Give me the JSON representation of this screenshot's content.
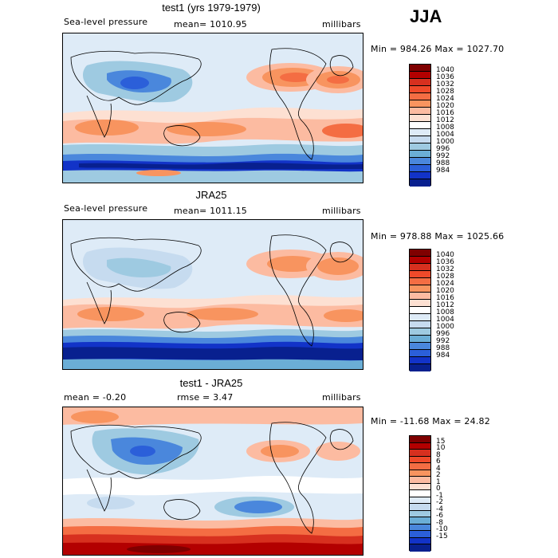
{
  "season": "JJA",
  "panels": [
    {
      "title": "test1 (yrs 1979-1979)",
      "left": "Sea-level pressure",
      "center": "mean= 1010.95",
      "right": "millibars",
      "minmax": "Min = 984.26 Max = 1027.70"
    },
    {
      "title": "JRA25",
      "left": "Sea-level pressure",
      "center": "mean= 1011.15",
      "right": "millibars",
      "minmax": "Min = 978.88 Max = 1025.66"
    },
    {
      "title": "test1 - JRA25",
      "left": "mean = -0.20",
      "center": "rmse = 3.47",
      "right": "millibars",
      "minmax": "Min = -11.68 Max = 24.82"
    }
  ],
  "colorbars": {
    "abs": {
      "labels": [
        "1040",
        "1036",
        "1032",
        "1028",
        "1024",
        "1020",
        "1016",
        "1012",
        "1008",
        "1004",
        "1000",
        "996",
        "992",
        "988",
        "984"
      ],
      "colors": [
        "#7f0000",
        "#b30000",
        "#d7301f",
        "#ef4a2a",
        "#f46d43",
        "#f8945f",
        "#fcbba1",
        "#fde0d2",
        "#ffffff",
        "#deebf7",
        "#c6dbef",
        "#9ecae1",
        "#6baed6",
        "#4a87dc",
        "#2b5fd9",
        "#1233c8",
        "#08208f"
      ]
    },
    "diff": {
      "labels": [
        "15",
        "10",
        "8",
        "6",
        "4",
        "2",
        "1",
        "0",
        "-1",
        "-2",
        "-4",
        "-6",
        "-8",
        "-10",
        "-15"
      ],
      "colors": [
        "#7f0000",
        "#b30000",
        "#d7301f",
        "#ef4a2a",
        "#f46d43",
        "#f8945f",
        "#fcbba1",
        "#fde0d2",
        "#ffffff",
        "#deebf7",
        "#c6dbef",
        "#9ecae1",
        "#6baed6",
        "#4a87dc",
        "#2b5fd9",
        "#1233c8",
        "#08208f"
      ]
    }
  },
  "chart_data": [
    {
      "type": "heatmap",
      "title": "test1 (yrs 1979-1979)",
      "variable": "Sea-level pressure",
      "units": "millibars",
      "mean": 1010.95,
      "min": 984.26,
      "max": 1027.7,
      "levels": [
        984,
        988,
        992,
        996,
        1000,
        1004,
        1008,
        1012,
        1016,
        1020,
        1024,
        1028,
        1032,
        1036,
        1040
      ]
    },
    {
      "type": "heatmap",
      "title": "JRA25",
      "variable": "Sea-level pressure",
      "units": "millibars",
      "mean": 1011.15,
      "min": 978.88,
      "max": 1025.66,
      "levels": [
        984,
        988,
        992,
        996,
        1000,
        1004,
        1008,
        1012,
        1016,
        1020,
        1024,
        1028,
        1032,
        1036,
        1040
      ]
    },
    {
      "type": "heatmap",
      "title": "test1 - JRA25",
      "units": "millibars",
      "mean": -0.2,
      "rmse": 3.47,
      "min": -11.68,
      "max": 24.82,
      "levels": [
        -15,
        -10,
        -8,
        -6,
        -4,
        -2,
        -1,
        0,
        1,
        2,
        4,
        6,
        8,
        10,
        15
      ]
    }
  ]
}
